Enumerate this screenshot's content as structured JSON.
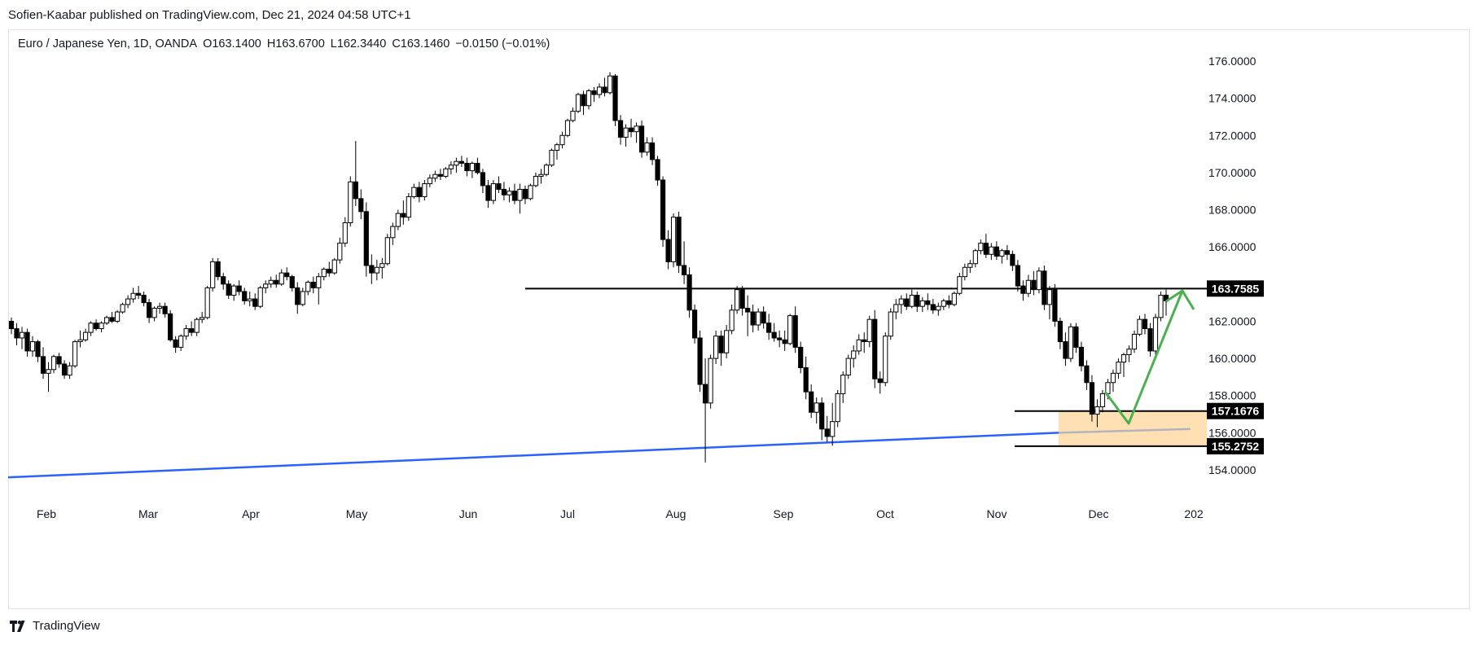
{
  "header": {
    "published": "Sofien-Kaabar published on TradingView.com, Dec 21, 2024 04:58 UTC+1"
  },
  "legend": {
    "symbol": "Euro / Japanese Yen, 1D, OANDA",
    "open": "O163.1400",
    "high": "H163.6700",
    "low": "L162.3440",
    "close": "C163.1460",
    "change": "−0.0150 (−0.01%)"
  },
  "footer": {
    "brand": "TradingView"
  },
  "chart_data": {
    "type": "candlestick",
    "symbol": "EUR/JPY",
    "interval": "1D",
    "y_ticks": [
      "176.0000",
      "174.0000",
      "172.0000",
      "170.0000",
      "168.0000",
      "166.0000",
      "164.0000",
      "162.0000",
      "160.0000",
      "158.0000",
      "156.0000",
      "154.0000"
    ],
    "ylim": [
      153.5,
      176.5
    ],
    "x_ticks": [
      "Feb",
      "Mar",
      "Apr",
      "May",
      "Jun",
      "Jul",
      "Aug",
      "Sep",
      "Oct",
      "Nov",
      "Dec",
      "202"
    ],
    "price_labels": [
      "163.7585",
      "157.1676",
      "155.2752"
    ],
    "levels": [
      {
        "label": "163.7585",
        "value": 163.7585,
        "color": "#000000"
      },
      {
        "label": "157.1676",
        "value": 157.1676,
        "color": "#000000"
      },
      {
        "label": "155.2752",
        "value": 155.2752,
        "color": "#000000"
      }
    ],
    "zone": {
      "from": 155.2752,
      "to": 157.1676,
      "color": "#ffe0b2"
    },
    "trendline": {
      "color": "#2962ff",
      "from": 153.6,
      "to": 156.0
    },
    "arrow": {
      "color": "#4caf50"
    },
    "grey_line": {
      "color": "#b2b5be",
      "from": 156.0,
      "to": 156.2
    },
    "candles": [
      [
        162.0,
        162.2,
        161.3,
        161.6
      ],
      [
        161.6,
        161.9,
        160.7,
        161.1
      ],
      [
        161.1,
        161.7,
        160.5,
        161.4
      ],
      [
        161.4,
        161.6,
        160.1,
        160.4
      ],
      [
        160.4,
        161.2,
        160.1,
        160.9
      ],
      [
        160.9,
        161.0,
        159.8,
        160.1
      ],
      [
        160.1,
        160.6,
        158.9,
        159.2
      ],
      [
        159.2,
        159.8,
        158.2,
        159.4
      ],
      [
        159.4,
        160.2,
        159.2,
        160.1
      ],
      [
        160.1,
        160.3,
        159.5,
        159.7
      ],
      [
        159.7,
        159.9,
        158.9,
        159.1
      ],
      [
        159.1,
        159.8,
        158.9,
        159.6
      ],
      [
        159.6,
        161.0,
        159.5,
        160.9
      ],
      [
        160.9,
        161.5,
        160.6,
        161.0
      ],
      [
        161.0,
        161.6,
        160.9,
        161.4
      ],
      [
        161.4,
        162.0,
        161.2,
        161.9
      ],
      [
        161.9,
        162.1,
        161.5,
        161.6
      ],
      [
        161.6,
        162.0,
        161.4,
        161.9
      ],
      [
        161.9,
        162.3,
        161.8,
        162.2
      ],
      [
        162.2,
        162.5,
        161.9,
        162.0
      ],
      [
        162.0,
        162.6,
        161.9,
        162.5
      ],
      [
        162.5,
        163.0,
        162.4,
        162.9
      ],
      [
        162.9,
        163.4,
        162.7,
        163.2
      ],
      [
        163.2,
        163.8,
        163.0,
        163.5
      ],
      [
        163.5,
        163.9,
        163.2,
        163.4
      ],
      [
        163.4,
        163.6,
        162.8,
        163.0
      ],
      [
        163.0,
        163.2,
        161.9,
        162.2
      ],
      [
        162.2,
        162.8,
        162.0,
        162.7
      ],
      [
        162.7,
        163.0,
        162.4,
        162.8
      ],
      [
        162.8,
        163.0,
        162.2,
        162.4
      ],
      [
        162.4,
        162.6,
        160.9,
        161.0
      ],
      [
        161.0,
        161.2,
        160.3,
        160.6
      ],
      [
        160.6,
        161.3,
        160.4,
        161.2
      ],
      [
        161.2,
        161.8,
        161.0,
        161.6
      ],
      [
        161.6,
        162.0,
        161.2,
        161.4
      ],
      [
        161.4,
        162.2,
        161.2,
        162.1
      ],
      [
        162.1,
        162.5,
        161.9,
        162.2
      ],
      [
        162.2,
        163.9,
        162.1,
        163.8
      ],
      [
        163.8,
        165.4,
        163.6,
        165.2
      ],
      [
        165.2,
        165.4,
        164.2,
        164.4
      ],
      [
        164.4,
        164.6,
        163.7,
        164.0
      ],
      [
        164.0,
        164.2,
        163.2,
        163.4
      ],
      [
        163.4,
        164.0,
        163.1,
        163.9
      ],
      [
        163.9,
        164.2,
        163.4,
        163.6
      ],
      [
        163.6,
        163.8,
        162.9,
        163.1
      ],
      [
        163.1,
        163.6,
        162.8,
        163.2
      ],
      [
        163.2,
        163.5,
        162.6,
        162.8
      ],
      [
        162.8,
        163.9,
        162.7,
        163.8
      ],
      [
        163.8,
        164.2,
        163.5,
        164.0
      ],
      [
        164.0,
        164.4,
        163.8,
        164.2
      ],
      [
        164.2,
        164.5,
        163.8,
        164.0
      ],
      [
        164.0,
        164.8,
        163.9,
        164.6
      ],
      [
        164.6,
        164.9,
        164.2,
        164.4
      ],
      [
        164.4,
        164.5,
        163.6,
        163.8
      ],
      [
        163.8,
        164.1,
        162.4,
        162.9
      ],
      [
        162.9,
        163.8,
        162.8,
        163.6
      ],
      [
        163.6,
        164.2,
        163.4,
        164.1
      ],
      [
        164.1,
        164.4,
        163.5,
        163.8
      ],
      [
        163.8,
        164.6,
        162.9,
        164.4
      ],
      [
        164.4,
        164.9,
        164.2,
        164.8
      ],
      [
        164.8,
        165.2,
        164.4,
        164.6
      ],
      [
        164.6,
        165.4,
        164.5,
        165.3
      ],
      [
        165.3,
        166.5,
        165.1,
        166.2
      ],
      [
        166.2,
        167.6,
        166.0,
        167.3
      ],
      [
        167.3,
        169.8,
        167.1,
        169.5
      ],
      [
        169.5,
        171.7,
        168.2,
        168.6
      ],
      [
        168.6,
        169.1,
        167.5,
        167.9
      ],
      [
        167.9,
        168.4,
        164.4,
        165.0
      ],
      [
        165.0,
        165.6,
        164.0,
        164.6
      ],
      [
        164.6,
        165.3,
        164.2,
        164.9
      ],
      [
        164.9,
        165.4,
        164.3,
        165.1
      ],
      [
        165.1,
        166.7,
        165.0,
        166.5
      ],
      [
        166.5,
        167.3,
        166.1,
        167.1
      ],
      [
        167.1,
        168.0,
        166.9,
        167.8
      ],
      [
        167.8,
        168.5,
        167.2,
        167.6
      ],
      [
        167.6,
        168.9,
        167.4,
        168.7
      ],
      [
        168.7,
        169.4,
        168.6,
        169.2
      ],
      [
        169.2,
        169.5,
        168.4,
        168.7
      ],
      [
        168.7,
        169.6,
        168.5,
        169.4
      ],
      [
        169.4,
        169.9,
        169.2,
        169.7
      ],
      [
        169.7,
        170.1,
        169.5,
        169.9
      ],
      [
        169.9,
        170.2,
        169.6,
        169.8
      ],
      [
        169.8,
        170.3,
        169.7,
        170.2
      ],
      [
        170.2,
        170.6,
        169.9,
        170.4
      ],
      [
        170.4,
        170.8,
        170.0,
        170.6
      ],
      [
        170.6,
        170.9,
        170.3,
        170.5
      ],
      [
        170.5,
        170.8,
        169.8,
        170.1
      ],
      [
        170.1,
        170.6,
        169.7,
        170.5
      ],
      [
        170.5,
        170.8,
        169.9,
        170.0
      ],
      [
        170.0,
        170.2,
        168.9,
        169.3
      ],
      [
        169.3,
        169.6,
        168.1,
        168.5
      ],
      [
        168.5,
        169.6,
        168.3,
        169.4
      ],
      [
        169.4,
        169.8,
        168.9,
        169.1
      ],
      [
        169.1,
        169.5,
        168.5,
        168.8
      ],
      [
        168.8,
        169.2,
        168.4,
        169.0
      ],
      [
        169.0,
        169.4,
        168.3,
        168.5
      ],
      [
        168.5,
        169.4,
        167.8,
        169.1
      ],
      [
        169.1,
        169.3,
        168.3,
        168.6
      ],
      [
        168.6,
        169.4,
        168.5,
        169.3
      ],
      [
        169.3,
        170.0,
        169.2,
        169.8
      ],
      [
        169.8,
        170.2,
        169.4,
        169.9
      ],
      [
        169.9,
        170.5,
        169.8,
        170.4
      ],
      [
        170.4,
        171.3,
        170.3,
        171.2
      ],
      [
        171.2,
        171.6,
        170.7,
        171.5
      ],
      [
        171.5,
        172.2,
        171.3,
        172.0
      ],
      [
        172.0,
        172.9,
        171.9,
        172.8
      ],
      [
        172.8,
        173.5,
        172.7,
        173.3
      ],
      [
        173.3,
        174.3,
        173.2,
        174.2
      ],
      [
        174.2,
        174.4,
        173.1,
        173.6
      ],
      [
        173.6,
        174.5,
        173.4,
        174.4
      ],
      [
        174.4,
        174.6,
        173.8,
        174.2
      ],
      [
        174.2,
        174.8,
        174.0,
        174.6
      ],
      [
        174.6,
        175.1,
        174.1,
        174.3
      ],
      [
        174.3,
        175.4,
        174.2,
        175.2
      ],
      [
        175.2,
        175.3,
        172.5,
        172.8
      ],
      [
        172.8,
        173.1,
        171.5,
        171.9
      ],
      [
        171.9,
        172.6,
        171.4,
        172.4
      ],
      [
        172.4,
        172.9,
        171.9,
        172.2
      ],
      [
        172.2,
        172.7,
        171.6,
        172.5
      ],
      [
        172.5,
        172.8,
        170.8,
        171.1
      ],
      [
        171.1,
        171.9,
        170.9,
        171.6
      ],
      [
        171.6,
        171.9,
        170.4,
        170.7
      ],
      [
        170.7,
        170.9,
        169.3,
        169.6
      ],
      [
        169.6,
        169.8,
        166.0,
        166.4
      ],
      [
        166.4,
        166.9,
        164.8,
        165.2
      ],
      [
        165.2,
        167.8,
        164.9,
        167.6
      ],
      [
        167.6,
        167.9,
        164.6,
        165.0
      ],
      [
        165.0,
        166.3,
        164.0,
        164.5
      ],
      [
        164.5,
        164.9,
        162.2,
        162.6
      ],
      [
        162.6,
        162.9,
        160.8,
        161.1
      ],
      [
        161.1,
        161.5,
        158.2,
        158.6
      ],
      [
        158.6,
        160.0,
        154.4,
        157.6
      ],
      [
        157.6,
        160.2,
        157.3,
        160.0
      ],
      [
        160.0,
        161.5,
        159.7,
        161.2
      ],
      [
        161.2,
        161.5,
        159.6,
        160.3
      ],
      [
        160.3,
        161.8,
        160.0,
        161.5
      ],
      [
        161.5,
        162.9,
        161.3,
        162.6
      ],
      [
        162.6,
        163.9,
        162.4,
        163.7
      ],
      [
        163.7,
        163.9,
        162.3,
        162.7
      ],
      [
        162.7,
        163.4,
        161.2,
        162.5
      ],
      [
        162.5,
        162.9,
        161.4,
        161.8
      ],
      [
        161.8,
        162.7,
        161.5,
        162.5
      ],
      [
        162.5,
        162.8,
        161.6,
        161.9
      ],
      [
        161.9,
        162.4,
        161.0,
        161.4
      ],
      [
        161.4,
        161.9,
        160.9,
        161.1
      ],
      [
        161.1,
        161.5,
        160.6,
        161.0
      ],
      [
        161.0,
        161.5,
        160.4,
        160.8
      ],
      [
        160.8,
        162.4,
        160.7,
        162.3
      ],
      [
        162.3,
        162.8,
        160.3,
        160.6
      ],
      [
        160.6,
        160.9,
        159.2,
        159.5
      ],
      [
        159.5,
        160.1,
        157.8,
        158.2
      ],
      [
        158.2,
        158.6,
        156.8,
        157.1
      ],
      [
        157.1,
        157.9,
        156.5,
        157.6
      ],
      [
        157.6,
        157.9,
        155.6,
        156.2
      ],
      [
        156.2,
        156.9,
        155.5,
        155.8
      ],
      [
        155.8,
        157.6,
        155.3,
        156.6
      ],
      [
        156.6,
        158.3,
        156.3,
        158.1
      ],
      [
        158.1,
        159.3,
        157.6,
        159.1
      ],
      [
        159.1,
        160.2,
        158.9,
        160.0
      ],
      [
        160.0,
        160.7,
        159.5,
        160.4
      ],
      [
        160.4,
        161.3,
        160.2,
        161.0
      ],
      [
        161.0,
        161.4,
        160.3,
        160.9
      ],
      [
        160.9,
        162.3,
        160.6,
        162.1
      ],
      [
        162.1,
        162.6,
        158.4,
        158.9
      ],
      [
        158.9,
        159.3,
        158.1,
        158.7
      ],
      [
        158.7,
        161.4,
        158.5,
        161.2
      ],
      [
        161.2,
        162.7,
        161.0,
        162.5
      ],
      [
        162.5,
        163.2,
        162.1,
        162.9
      ],
      [
        162.9,
        163.4,
        162.4,
        163.2
      ],
      [
        163.2,
        163.5,
        162.6,
        162.8
      ],
      [
        162.8,
        163.7,
        162.7,
        163.4
      ],
      [
        163.4,
        163.6,
        162.5,
        162.8
      ],
      [
        162.8,
        163.3,
        162.5,
        163.1
      ],
      [
        163.1,
        163.5,
        162.6,
        162.9
      ],
      [
        162.9,
        163.2,
        162.4,
        162.6
      ],
      [
        162.6,
        163.0,
        162.3,
        162.8
      ],
      [
        162.8,
        163.2,
        162.6,
        163.1
      ],
      [
        163.1,
        163.4,
        162.7,
        162.9
      ],
      [
        162.9,
        163.6,
        162.8,
        163.5
      ],
      [
        163.5,
        164.6,
        163.4,
        164.4
      ],
      [
        164.4,
        165.1,
        164.2,
        164.9
      ],
      [
        164.9,
        165.3,
        164.6,
        165.1
      ],
      [
        165.1,
        165.9,
        164.9,
        165.8
      ],
      [
        165.8,
        166.4,
        165.6,
        166.2
      ],
      [
        166.2,
        166.7,
        165.4,
        165.6
      ],
      [
        165.6,
        166.2,
        165.3,
        166.0
      ],
      [
        166.0,
        166.3,
        165.3,
        165.5
      ],
      [
        165.5,
        165.9,
        165.1,
        165.8
      ],
      [
        165.8,
        166.1,
        165.3,
        165.6
      ],
      [
        165.6,
        165.8,
        164.7,
        165.0
      ],
      [
        165.0,
        165.3,
        163.6,
        163.9
      ],
      [
        163.9,
        164.2,
        163.1,
        163.5
      ],
      [
        163.5,
        164.5,
        163.3,
        164.2
      ],
      [
        164.2,
        164.7,
        163.4,
        163.7
      ],
      [
        163.7,
        164.9,
        163.5,
        164.7
      ],
      [
        164.7,
        165.0,
        162.6,
        162.9
      ],
      [
        162.9,
        163.9,
        162.1,
        163.7
      ],
      [
        163.7,
        164.0,
        161.7,
        162.0
      ],
      [
        162.0,
        162.2,
        160.5,
        160.9
      ],
      [
        160.9,
        161.4,
        159.6,
        160.0
      ],
      [
        160.0,
        161.9,
        159.8,
        161.7
      ],
      [
        161.7,
        161.9,
        160.3,
        160.6
      ],
      [
        160.6,
        160.9,
        159.3,
        159.6
      ],
      [
        159.6,
        159.9,
        158.3,
        158.7
      ],
      [
        158.7,
        159.1,
        156.6,
        157.0
      ],
      [
        157.0,
        157.8,
        156.3,
        157.4
      ],
      [
        157.4,
        158.3,
        157.1,
        158.1
      ],
      [
        158.1,
        158.9,
        157.8,
        158.7
      ],
      [
        158.7,
        159.4,
        158.2,
        159.2
      ],
      [
        159.2,
        160.0,
        158.9,
        159.8
      ],
      [
        159.8,
        160.3,
        159.0,
        160.2
      ],
      [
        160.2,
        160.7,
        159.8,
        160.5
      ],
      [
        160.5,
        161.5,
        160.3,
        161.3
      ],
      [
        161.3,
        162.3,
        161.2,
        162.1
      ],
      [
        162.1,
        162.4,
        161.3,
        161.6
      ],
      [
        161.6,
        161.9,
        160.1,
        160.4
      ],
      [
        160.4,
        162.4,
        160.2,
        162.2
      ],
      [
        162.2,
        163.6,
        162.0,
        163.4
      ],
      [
        163.4,
        163.7,
        162.3,
        163.1
      ]
    ]
  }
}
